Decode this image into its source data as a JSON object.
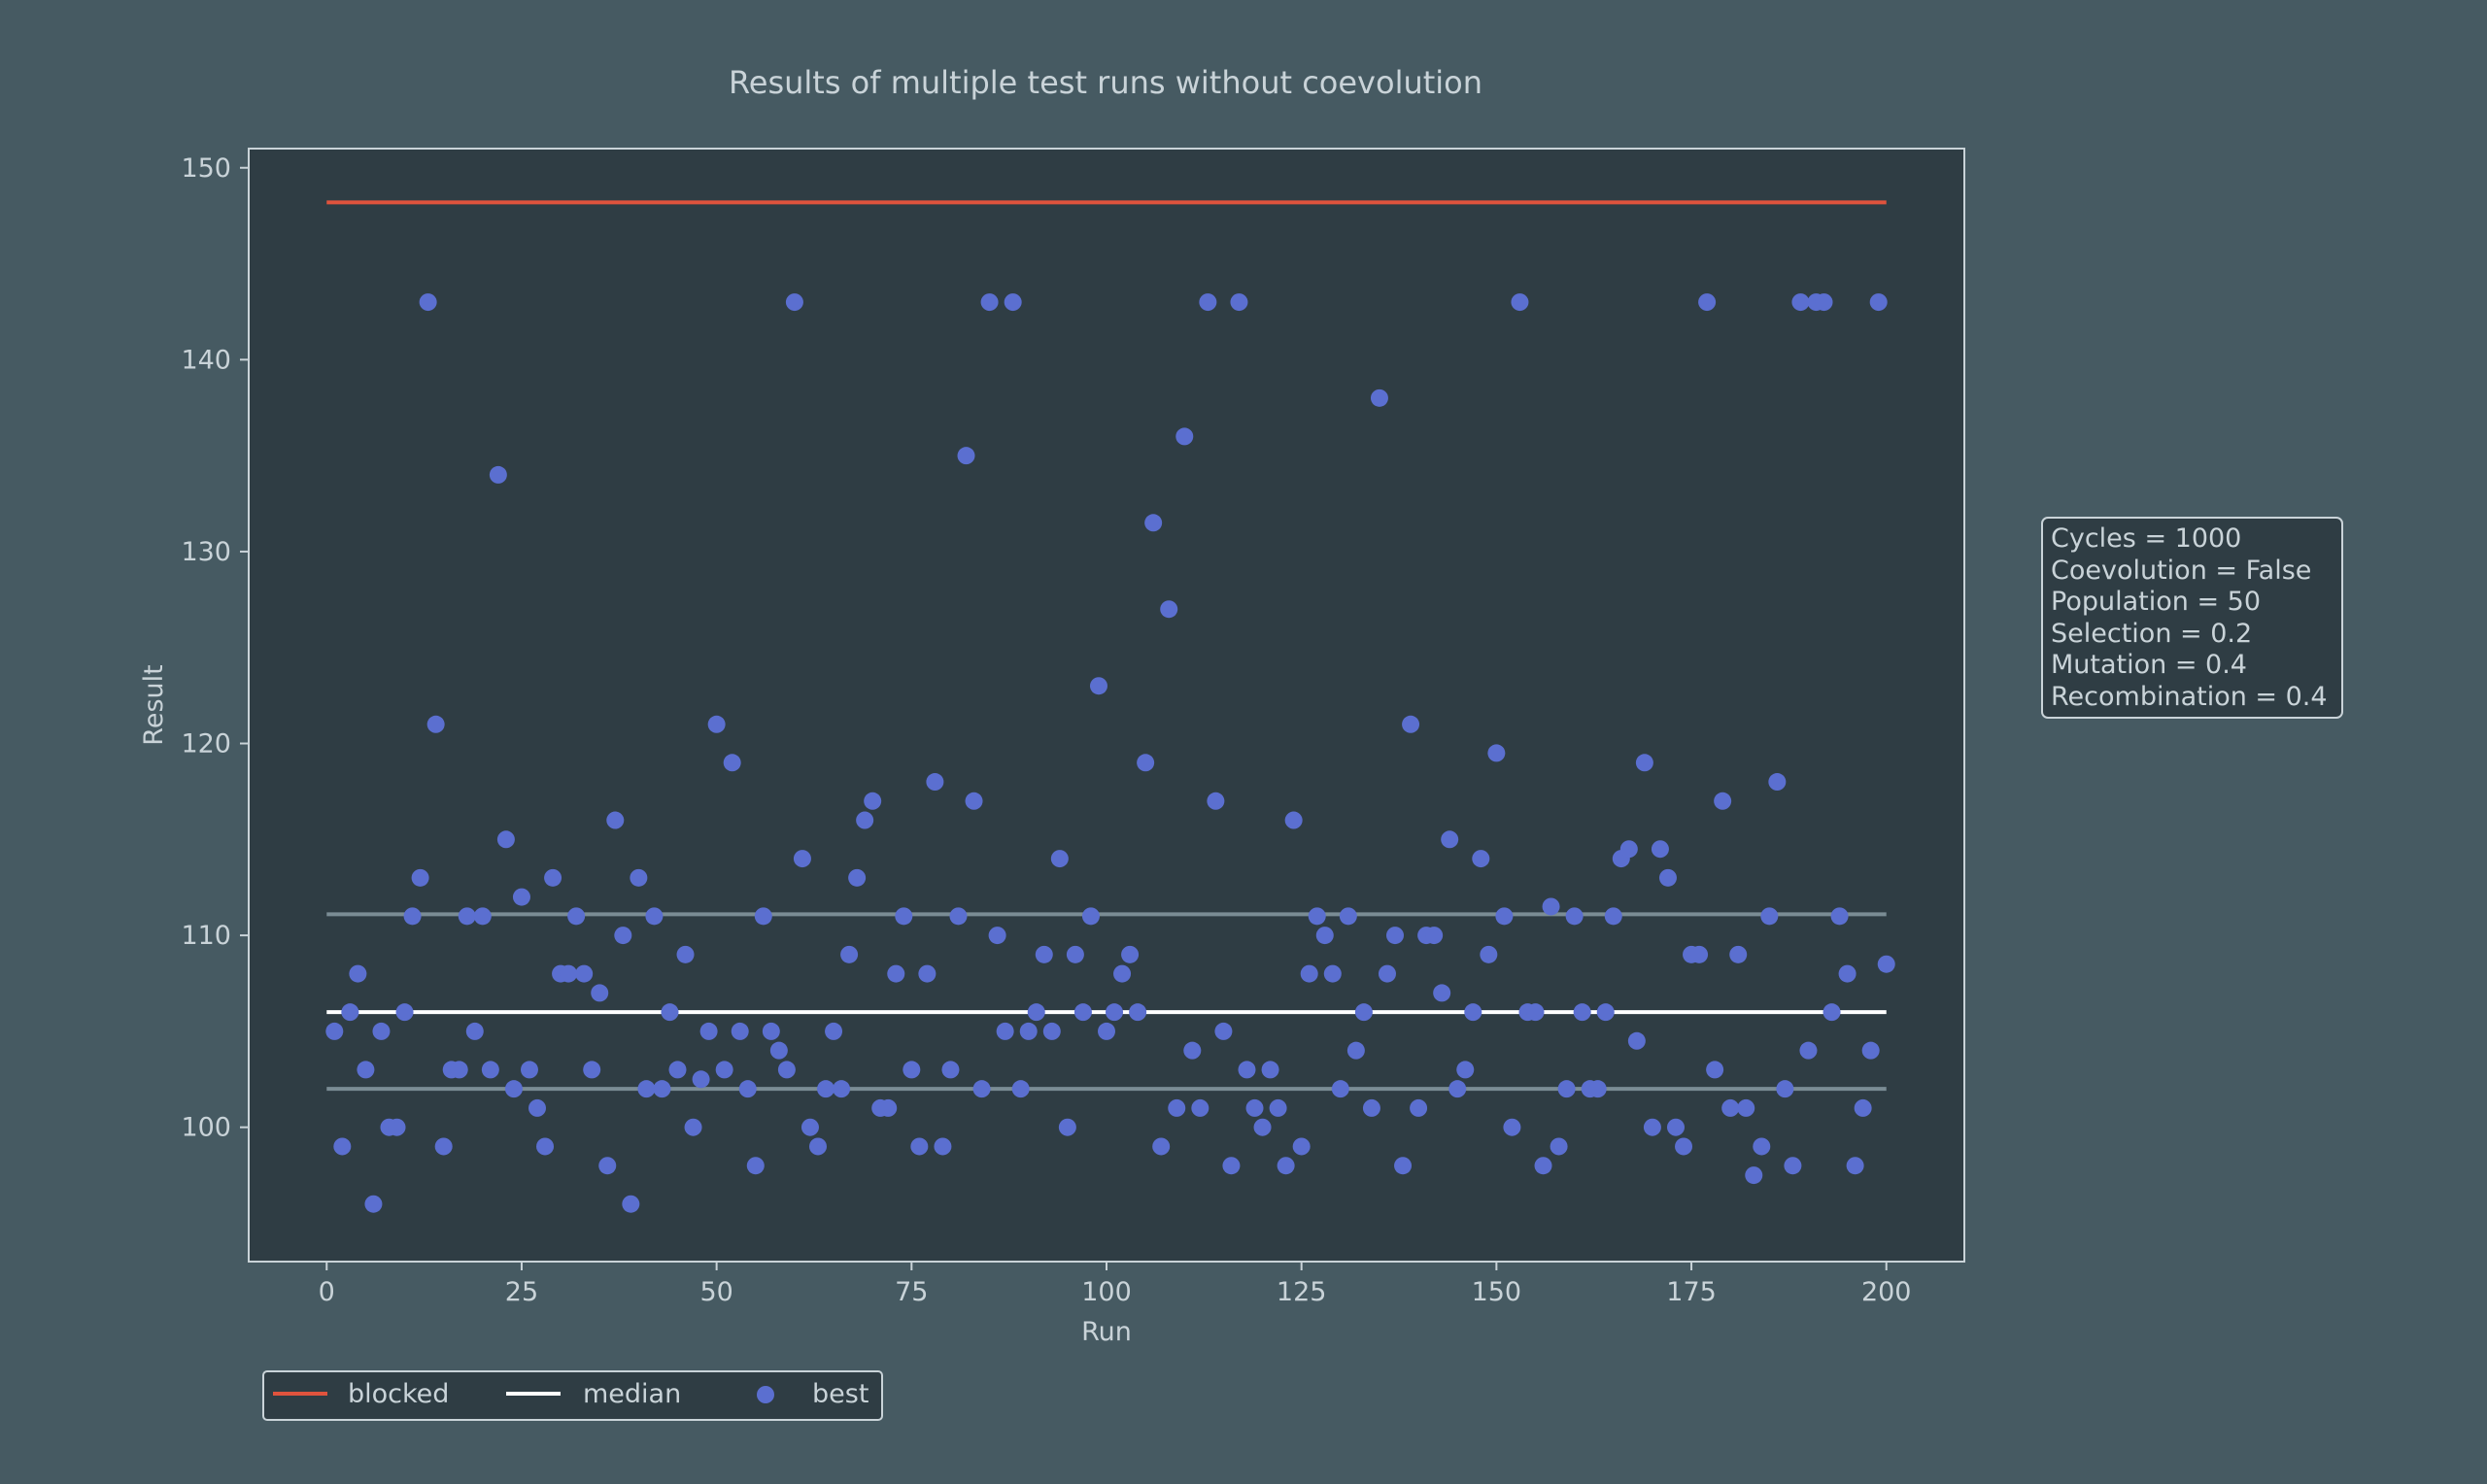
{
  "colors": {
    "background": "#465a62",
    "plot_background": "#2f3d44",
    "frame": "#c9d3d8",
    "text": "#c9d3d8",
    "blocked": "#e0533d",
    "median": "#ffffff",
    "quartile": "#7a8c94",
    "best": "#5b6fd0"
  },
  "chart_data": {
    "type": "scatter",
    "title": "Results of multiple test runs without coevolution",
    "xlabel": "Run",
    "ylabel": "Result",
    "xlim": [
      -10,
      210
    ],
    "ylim": [
      93,
      151
    ],
    "xticks": [
      0,
      25,
      50,
      75,
      100,
      125,
      150,
      175,
      200
    ],
    "yticks": [
      100,
      110,
      120,
      130,
      140,
      150
    ],
    "grid": false,
    "legend_position": "bottom-left, below plot",
    "legend": [
      {
        "name": "blocked",
        "kind": "line",
        "color": "#e0533d"
      },
      {
        "name": "median",
        "kind": "line",
        "color": "#ffffff"
      },
      {
        "name": "best",
        "kind": "marker",
        "color": "#5b6fd0"
      }
    ],
    "lines": [
      {
        "name": "blocked",
        "x": [
          0,
          200
        ],
        "y": [
          148.2,
          148.2
        ]
      },
      {
        "name": "median",
        "x": [
          0,
          200
        ],
        "y": [
          106,
          106
        ]
      },
      {
        "name": "",
        "x": [
          0,
          200
        ],
        "y": [
          111.1,
          111.1
        ],
        "role": "upper quartile"
      },
      {
        "name": "",
        "x": [
          0,
          200
        ],
        "y": [
          102,
          102
        ],
        "role": "lower quartile"
      }
    ],
    "series": [
      {
        "name": "best",
        "x": [
          1,
          2,
          3,
          4,
          5,
          6,
          7,
          8,
          9,
          10,
          11,
          12,
          13,
          14,
          15,
          16,
          17,
          18,
          19,
          20,
          21,
          22,
          23,
          24,
          25,
          26,
          27,
          28,
          29,
          30,
          31,
          32,
          33,
          34,
          35,
          36,
          37,
          38,
          39,
          40,
          41,
          42,
          43,
          44,
          45,
          46,
          47,
          48,
          49,
          50,
          51,
          52,
          53,
          54,
          55,
          56,
          57,
          58,
          59,
          60,
          61,
          62,
          63,
          64,
          65,
          66,
          67,
          68,
          69,
          70,
          71,
          72,
          73,
          74,
          75,
          76,
          77,
          78,
          79,
          80,
          81,
          82,
          83,
          84,
          85,
          86,
          87,
          88,
          89,
          90,
          91,
          92,
          93,
          94,
          95,
          96,
          97,
          98,
          99,
          100,
          101,
          102,
          103,
          104,
          105,
          106,
          107,
          108,
          109,
          110,
          111,
          112,
          113,
          114,
          115,
          116,
          117,
          118,
          119,
          120,
          121,
          122,
          123,
          124,
          125,
          126,
          127,
          128,
          129,
          130,
          131,
          132,
          133,
          134,
          135,
          136,
          137,
          138,
          139,
          140,
          141,
          142,
          143,
          144,
          145,
          146,
          147,
          148,
          149,
          150,
          151,
          152,
          153,
          154,
          155,
          156,
          157,
          158,
          159,
          160,
          161,
          162,
          163,
          164,
          165,
          166,
          167,
          168,
          169,
          170,
          171,
          172,
          173,
          174,
          175,
          176,
          177,
          178,
          179,
          180,
          181,
          182,
          183,
          184,
          185,
          186,
          187,
          188,
          189,
          190,
          191,
          192,
          193,
          194,
          195,
          196,
          197,
          198,
          199,
          200
        ],
        "y": [
          105,
          99,
          106,
          108,
          103,
          96,
          105,
          100,
          100,
          106,
          111,
          113,
          143,
          121,
          99,
          103,
          103,
          111,
          105,
          111,
          103,
          134,
          115,
          102,
          112,
          103,
          101,
          99,
          113,
          108,
          108,
          111,
          108,
          103,
          107,
          98,
          116,
          110,
          96,
          113,
          102,
          111,
          102,
          106,
          103,
          109,
          100,
          102.5,
          105,
          121,
          103,
          119,
          105,
          102,
          98,
          111,
          105,
          104,
          103,
          143,
          114,
          100,
          99,
          102,
          105,
          102,
          109,
          113,
          116,
          117,
          101,
          101,
          108,
          111,
          103,
          99,
          108,
          118,
          99,
          103,
          111,
          135,
          117,
          102,
          143,
          110,
          105,
          143,
          102,
          105,
          106,
          109,
          105,
          114,
          100,
          109,
          106,
          111,
          123,
          105,
          106,
          108,
          109,
          106,
          119,
          131.5,
          99,
          127,
          101,
          136,
          104,
          101,
          143,
          117,
          105,
          98,
          143,
          103,
          101,
          100,
          103,
          101,
          98,
          116,
          99,
          108,
          111,
          110,
          108,
          102,
          111,
          104,
          106,
          101,
          138,
          108,
          110,
          98,
          121,
          101,
          110,
          110,
          107,
          115,
          102,
          103,
          106,
          114,
          109,
          119.5,
          111,
          100,
          143,
          106,
          106,
          98,
          111.5,
          99,
          102,
          111,
          106,
          102,
          102,
          106,
          111,
          114,
          114.5,
          104.5,
          119,
          100,
          114.5,
          113,
          100,
          99,
          109,
          109,
          143,
          103,
          117,
          101,
          109,
          101,
          97.5,
          99,
          111,
          118,
          102,
          98,
          143,
          104,
          143,
          143,
          106,
          111,
          108,
          98,
          101,
          104,
          143,
          108.5
        ]
      }
    ],
    "annotation": [
      "Cycles = 1000",
      "Coevolution = False",
      "Population = 50",
      "Selection = 0.2",
      "Mutation = 0.4",
      "Recombination = 0.4"
    ]
  }
}
